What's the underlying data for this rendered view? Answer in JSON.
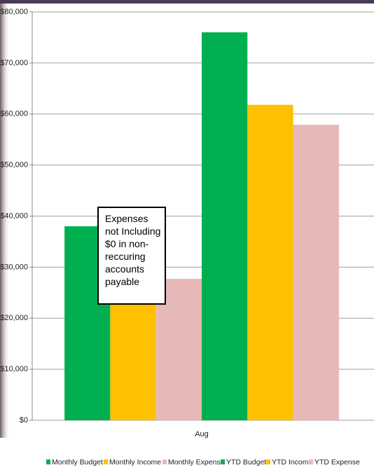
{
  "chart_data": {
    "type": "bar",
    "categories": [
      "Aug"
    ],
    "series": [
      {
        "name": "Monthly Budget",
        "color": "#00b050",
        "values": [
          38000
        ]
      },
      {
        "name": "Monthly Income",
        "color": "#ffc000",
        "values": [
          25000
        ]
      },
      {
        "name": "Monthly Expense",
        "color": "#e6b9b8",
        "values": [
          27700
        ]
      },
      {
        "name": "YTD Budget",
        "color": "#00b050",
        "values": [
          76000
        ]
      },
      {
        "name": "YTD Income",
        "color": "#ffc000",
        "values": [
          61800
        ]
      },
      {
        "name": "YTD Expense",
        "color": "#e6b9b8",
        "values": [
          57900
        ]
      }
    ],
    "ylim": [
      0,
      80000
    ],
    "yticks": [
      {
        "value": 0,
        "label": "$0"
      },
      {
        "value": 10000,
        "label": "$10,000"
      },
      {
        "value": 20000,
        "label": "$20,000"
      },
      {
        "value": 30000,
        "label": "$30,000"
      },
      {
        "value": 40000,
        "label": "$40,000"
      },
      {
        "value": 50000,
        "label": "$50,000"
      },
      {
        "value": 60000,
        "label": "$60,000"
      },
      {
        "value": 70000,
        "label": "$70,000"
      },
      {
        "value": 80000,
        "label": "$80,000"
      }
    ],
    "grid": true,
    "annotation": "Expenses not Including $0 in non-reccuring accounts payable",
    "legend": "bottom"
  }
}
